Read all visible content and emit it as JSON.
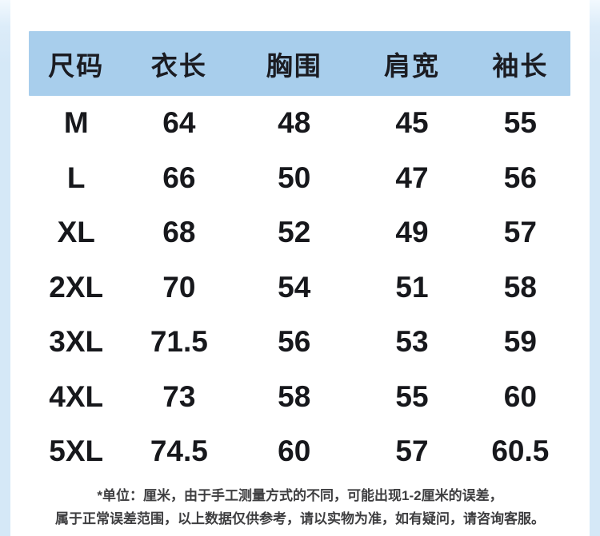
{
  "chart_data": {
    "type": "table",
    "columns": [
      "尺码",
      "衣长",
      "胸围",
      "肩宽",
      "袖长"
    ],
    "rows": [
      {
        "size": "M",
        "values": [
          "64",
          "48",
          "45",
          "55"
        ]
      },
      {
        "size": "L",
        "values": [
          "66",
          "50",
          "47",
          "56"
        ]
      },
      {
        "size": "XL",
        "values": [
          "68",
          "52",
          "49",
          "57"
        ]
      },
      {
        "size": "2XL",
        "values": [
          "70",
          "54",
          "51",
          "58"
        ]
      },
      {
        "size": "3XL",
        "values": [
          "71.5",
          "56",
          "53",
          "59"
        ]
      },
      {
        "size": "4XL",
        "values": [
          "73",
          "58",
          "55",
          "60"
        ]
      },
      {
        "size": "5XL",
        "values": [
          "74.5",
          "60",
          "57",
          "60.5"
        ]
      }
    ],
    "unit": "厘米",
    "layout": {
      "header_position": "top",
      "grid": "off"
    }
  },
  "footnote": {
    "line1": "*单位：厘米，由于手工测量方式的不同，可能出现1-2厘米的误差，",
    "line2": "属于正常误差范围，以上数据仅供参考，请以实物为准，如有疑问，请咨询客服。"
  },
  "colors": {
    "page_background": "#d5e8f7",
    "card_background": "#ffffff",
    "header_background": "#a8ceec",
    "header_text": "#1b1c22",
    "cell_text": "#17181c",
    "footnote_text": "#3e3e40"
  }
}
